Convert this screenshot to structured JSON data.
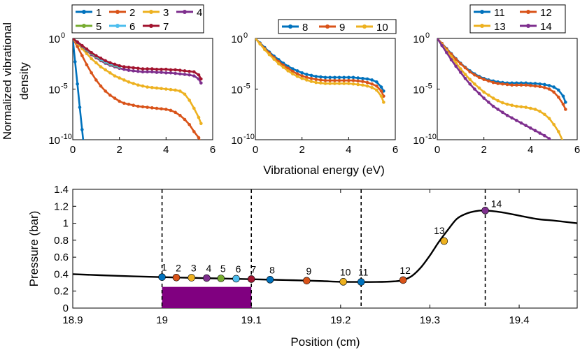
{
  "colors": {
    "1": "#0072BD",
    "2": "#D95319",
    "3": "#EDB120",
    "4": "#7E2F8E",
    "5": "#77AC30",
    "6": "#4DBEEE",
    "7": "#A2142F",
    "8": "#0072BD",
    "9": "#D95319",
    "10": "#EDB120",
    "11": "#0072BD",
    "12": "#D95319",
    "13": "#EDB120",
    "14": "#7E2F8E",
    "bar": "#800080",
    "line": "#000000"
  },
  "chart_data": [
    {
      "type": "line",
      "yscale": "log",
      "ylabel": "Normalized vibrational density",
      "xlabel": "Vibrational energy (eV)",
      "xlim": [
        0,
        6
      ],
      "ylim_exp": [
        -10,
        0
      ],
      "xticks": [
        "0",
        "2",
        "4",
        "6"
      ],
      "yticks": [
        {
          "base": "10",
          "exp": "0"
        },
        {
          "base": "10",
          "exp": "-5"
        },
        {
          "base": "10",
          "exp": "-10"
        }
      ],
      "legend": [
        "1",
        "2",
        "3",
        "4",
        "5",
        "6",
        "7"
      ],
      "series": [
        {
          "name": "1",
          "x": [
            0,
            0.1,
            0.2,
            0.3,
            0.4,
            0.5
          ],
          "y_exp": [
            0,
            -2.3,
            -4.5,
            -6.8,
            -9.0,
            -11.2
          ]
        },
        {
          "name": "2",
          "x": [
            0,
            0.2,
            0.4,
            0.6,
            0.8,
            1.0,
            1.2,
            1.4,
            1.6,
            1.8,
            2.0,
            2.2,
            2.4,
            2.6,
            2.8,
            3.0,
            3.2,
            3.4,
            3.6,
            3.8,
            4.0,
            4.2,
            4.4,
            4.6,
            4.8,
            5.0,
            5.2,
            5.4,
            5.5
          ],
          "y_exp": [
            0,
            -0.8,
            -1.7,
            -2.6,
            -3.4,
            -4.1,
            -4.7,
            -5.2,
            -5.6,
            -5.9,
            -6.2,
            -6.4,
            -6.5,
            -6.6,
            -6.7,
            -6.75,
            -6.8,
            -6.85,
            -6.9,
            -6.95,
            -7.0,
            -7.1,
            -7.3,
            -7.6,
            -8.0,
            -8.5,
            -9.2,
            -9.8,
            -10.3
          ]
        },
        {
          "name": "3",
          "x": [
            0,
            0.2,
            0.4,
            0.6,
            0.8,
            1.0,
            1.2,
            1.4,
            1.6,
            1.8,
            2.0,
            2.2,
            2.4,
            2.6,
            2.8,
            3.0,
            3.2,
            3.4,
            3.6,
            3.8,
            4.0,
            4.2,
            4.4,
            4.6,
            4.8,
            5.0,
            5.2,
            5.4,
            5.5
          ],
          "y_exp": [
            0,
            -0.5,
            -1.0,
            -1.5,
            -2.0,
            -2.4,
            -2.8,
            -3.1,
            -3.4,
            -3.7,
            -3.9,
            -4.1,
            -4.3,
            -4.45,
            -4.6,
            -4.7,
            -4.8,
            -4.85,
            -4.9,
            -4.95,
            -5.0,
            -5.05,
            -5.1,
            -5.2,
            -5.5,
            -6.1,
            -6.9,
            -7.8,
            -8.4
          ]
        },
        {
          "name": "4",
          "x": [
            0,
            0.2,
            0.4,
            0.6,
            0.8,
            1.0,
            1.2,
            1.4,
            1.6,
            1.8,
            2.0,
            2.2,
            2.4,
            2.6,
            2.8,
            3.0,
            3.2,
            3.4,
            3.6,
            3.8,
            4.0,
            4.2,
            4.4,
            4.6,
            4.8,
            5.0,
            5.2,
            5.4,
            5.5
          ],
          "y_exp": [
            0,
            -0.4,
            -0.8,
            -1.2,
            -1.6,
            -1.9,
            -2.2,
            -2.45,
            -2.65,
            -2.8,
            -2.95,
            -3.05,
            -3.15,
            -3.2,
            -3.25,
            -3.3,
            -3.3,
            -3.3,
            -3.35,
            -3.35,
            -3.4,
            -3.4,
            -3.45,
            -3.5,
            -3.55,
            -3.6,
            -3.7,
            -4.0,
            -4.4
          ]
        },
        {
          "name": "5",
          "x": [
            0,
            0.2,
            0.4,
            0.6,
            0.8,
            1.0,
            1.2,
            1.4,
            1.6,
            1.8,
            2.0
          ],
          "y_exp": [
            0,
            -0.35,
            -0.75,
            -1.15,
            -1.5,
            -1.8,
            -2.1,
            -2.35,
            -2.55,
            -2.7,
            -2.85
          ]
        },
        {
          "name": "6",
          "x": [
            0,
            0.2,
            0.4,
            0.6,
            0.8,
            1.0,
            1.2,
            1.4,
            1.6,
            1.8,
            2.0
          ],
          "y_exp": [
            0,
            -0.35,
            -0.72,
            -1.1,
            -1.45,
            -1.75,
            -2.05,
            -2.3,
            -2.5,
            -2.65,
            -2.8
          ]
        },
        {
          "name": "7",
          "x": [
            0,
            0.2,
            0.4,
            0.6,
            0.8,
            1.0,
            1.2,
            1.4,
            1.6,
            1.8,
            2.0,
            2.2,
            2.4,
            2.6,
            2.8,
            3.0,
            3.2,
            3.4,
            3.6,
            3.8,
            4.0,
            4.2,
            4.4,
            4.6,
            4.8,
            5.0,
            5.2,
            5.4,
            5.5
          ],
          "y_exp": [
            0,
            -0.35,
            -0.7,
            -1.05,
            -1.4,
            -1.7,
            -1.95,
            -2.2,
            -2.4,
            -2.55,
            -2.7,
            -2.8,
            -2.85,
            -2.9,
            -2.95,
            -3.0,
            -3.0,
            -3.0,
            -3.05,
            -3.05,
            -3.05,
            -3.1,
            -3.1,
            -3.15,
            -3.2,
            -3.25,
            -3.3,
            -3.6,
            -4.0
          ]
        }
      ]
    },
    {
      "type": "line",
      "yscale": "log",
      "xlim": [
        0,
        6
      ],
      "ylim_exp": [
        -10,
        0
      ],
      "xticks": [
        "0",
        "2",
        "4",
        "6"
      ],
      "yticks": [
        {
          "base": "10",
          "exp": "0"
        },
        {
          "base": "10",
          "exp": "-5"
        },
        {
          "base": "10",
          "exp": "-10"
        }
      ],
      "legend": [
        "8",
        "9",
        "10"
      ],
      "series": [
        {
          "name": "8",
          "x": [
            0,
            0.2,
            0.4,
            0.6,
            0.8,
            1.0,
            1.2,
            1.4,
            1.6,
            1.8,
            2.0,
            2.2,
            2.4,
            2.6,
            2.8,
            3.0,
            3.2,
            3.4,
            3.6,
            3.8,
            4.0,
            4.2,
            4.4,
            4.6,
            4.8,
            5.0,
            5.2,
            5.4,
            5.5
          ],
          "y_exp": [
            0,
            -0.45,
            -0.9,
            -1.35,
            -1.75,
            -2.1,
            -2.45,
            -2.75,
            -3.0,
            -3.2,
            -3.4,
            -3.55,
            -3.65,
            -3.75,
            -3.8,
            -3.85,
            -3.85,
            -3.85,
            -3.85,
            -3.85,
            -3.85,
            -3.85,
            -3.9,
            -3.95,
            -4.0,
            -4.1,
            -4.3,
            -4.8,
            -5.2
          ]
        },
        {
          "name": "9",
          "x": [
            0,
            0.2,
            0.4,
            0.6,
            0.8,
            1.0,
            1.2,
            1.4,
            1.6,
            1.8,
            2.0,
            2.2,
            2.4,
            2.6,
            2.8,
            3.0,
            3.2,
            3.4,
            3.6,
            3.8,
            4.0,
            4.2,
            4.4,
            4.6,
            4.8,
            5.0,
            5.2,
            5.4,
            5.5
          ],
          "y_exp": [
            0,
            -0.5,
            -1.0,
            -1.45,
            -1.9,
            -2.3,
            -2.65,
            -2.95,
            -3.25,
            -3.5,
            -3.7,
            -3.85,
            -3.95,
            -4.05,
            -4.1,
            -4.15,
            -4.15,
            -4.15,
            -4.15,
            -4.15,
            -4.15,
            -4.15,
            -4.2,
            -4.25,
            -4.35,
            -4.5,
            -4.7,
            -5.2,
            -5.7
          ]
        },
        {
          "name": "10",
          "x": [
            0,
            0.2,
            0.4,
            0.6,
            0.8,
            1.0,
            1.2,
            1.4,
            1.6,
            1.8,
            2.0,
            2.2,
            2.4,
            2.6,
            2.8,
            3.0,
            3.2,
            3.4,
            3.6,
            3.8,
            4.0,
            4.2,
            4.4,
            4.6,
            4.8,
            5.0,
            5.2,
            5.4,
            5.5
          ],
          "y_exp": [
            0,
            -0.55,
            -1.1,
            -1.6,
            -2.05,
            -2.5,
            -2.85,
            -3.2,
            -3.5,
            -3.75,
            -3.95,
            -4.1,
            -4.25,
            -4.35,
            -4.4,
            -4.45,
            -4.45,
            -4.45,
            -4.45,
            -4.45,
            -4.45,
            -4.5,
            -4.55,
            -4.6,
            -4.7,
            -4.85,
            -5.1,
            -5.7,
            -6.3
          ]
        }
      ]
    },
    {
      "type": "line",
      "yscale": "log",
      "xlim": [
        0,
        6
      ],
      "ylim_exp": [
        -10,
        0
      ],
      "xticks": [
        "0",
        "2",
        "4",
        "6"
      ],
      "yticks": [
        {
          "base": "10",
          "exp": "0"
        },
        {
          "base": "10",
          "exp": "-5"
        },
        {
          "base": "10",
          "exp": "-10"
        }
      ],
      "legend": [
        "11",
        "12",
        "13",
        "14"
      ],
      "series": [
        {
          "name": "11",
          "x": [
            0,
            0.2,
            0.4,
            0.6,
            0.8,
            1.0,
            1.2,
            1.4,
            1.6,
            1.8,
            2.0,
            2.2,
            2.4,
            2.6,
            2.8,
            3.0,
            3.2,
            3.4,
            3.6,
            3.8,
            4.0,
            4.2,
            4.4,
            4.6,
            4.8,
            5.0,
            5.2,
            5.4,
            5.5
          ],
          "y_exp": [
            0,
            -0.5,
            -1.0,
            -1.5,
            -2.0,
            -2.45,
            -2.85,
            -3.2,
            -3.5,
            -3.75,
            -3.95,
            -4.1,
            -4.2,
            -4.3,
            -4.35,
            -4.4,
            -4.4,
            -4.4,
            -4.4,
            -4.4,
            -4.45,
            -4.45,
            -4.5,
            -4.55,
            -4.65,
            -4.8,
            -5.1,
            -5.7,
            -6.3
          ]
        },
        {
          "name": "12",
          "x": [
            0,
            0.2,
            0.4,
            0.6,
            0.8,
            1.0,
            1.2,
            1.4,
            1.6,
            1.8,
            2.0,
            2.2,
            2.4,
            2.6,
            2.8,
            3.0,
            3.2,
            3.4,
            3.6,
            3.8,
            4.0,
            4.2,
            4.4,
            4.6,
            4.8,
            5.0,
            5.2,
            5.4,
            5.5
          ],
          "y_exp": [
            0,
            -0.5,
            -1.05,
            -1.55,
            -2.05,
            -2.5,
            -2.9,
            -3.3,
            -3.6,
            -3.85,
            -4.05,
            -4.2,
            -4.35,
            -4.45,
            -4.5,
            -4.55,
            -4.6,
            -4.6,
            -4.6,
            -4.6,
            -4.65,
            -4.7,
            -4.75,
            -4.85,
            -5.0,
            -5.3,
            -5.8,
            -6.5,
            -7.0
          ]
        },
        {
          "name": "13",
          "x": [
            0,
            0.2,
            0.4,
            0.6,
            0.8,
            1.0,
            1.2,
            1.4,
            1.6,
            1.8,
            2.0,
            2.2,
            2.4,
            2.6,
            2.8,
            3.0,
            3.2,
            3.4,
            3.6,
            3.8,
            4.0,
            4.2,
            4.4,
            4.6,
            4.8,
            5.0,
            5.2,
            5.4,
            5.5
          ],
          "y_exp": [
            0,
            -0.6,
            -1.2,
            -1.8,
            -2.4,
            -3.0,
            -3.55,
            -4.05,
            -4.5,
            -4.9,
            -5.3,
            -5.6,
            -5.9,
            -6.15,
            -6.35,
            -6.5,
            -6.6,
            -6.7,
            -6.75,
            -6.8,
            -6.9,
            -7.0,
            -7.2,
            -7.5,
            -7.9,
            -8.5,
            -9.2,
            -10.2,
            -11.0
          ]
        },
        {
          "name": "14",
          "x": [
            0,
            0.2,
            0.4,
            0.6,
            0.8,
            1.0,
            1.2,
            1.4,
            1.6,
            1.8,
            2.0,
            2.2,
            2.4,
            2.6,
            2.8,
            3.0,
            3.2,
            3.4,
            3.6,
            3.8,
            4.0,
            4.2,
            4.4,
            4.6,
            4.8,
            5.0
          ],
          "y_exp": [
            0,
            -0.7,
            -1.4,
            -2.1,
            -2.75,
            -3.35,
            -3.95,
            -4.5,
            -5.0,
            -5.45,
            -5.9,
            -6.3,
            -6.7,
            -7.0,
            -7.3,
            -7.6,
            -7.85,
            -8.1,
            -8.35,
            -8.6,
            -8.85,
            -9.1,
            -9.35,
            -9.6,
            -9.9,
            -10.3
          ]
        }
      ]
    },
    {
      "type": "line",
      "xlabel": "Position (cm)",
      "ylabel": "Pressure (bar)",
      "xlim": [
        18.9,
        19.465
      ],
      "ylim": [
        0,
        1.4
      ],
      "xticks": [
        {
          "v": 18.9,
          "label": "18.9"
        },
        {
          "v": 19.0,
          "label": "19"
        },
        {
          "v": 19.1,
          "label": "19.1"
        },
        {
          "v": 19.2,
          "label": "19.2"
        },
        {
          "v": 19.3,
          "label": "19.3"
        },
        {
          "v": 19.4,
          "label": "19.4"
        }
      ],
      "yticks": [
        {
          "v": 0,
          "label": "0"
        },
        {
          "v": 0.2,
          "label": "0.2"
        },
        {
          "v": 0.4,
          "label": "0.4"
        },
        {
          "v": 0.6,
          "label": "0.6"
        },
        {
          "v": 0.8,
          "label": "0.8"
        },
        {
          "v": 1.0,
          "label": "1"
        },
        {
          "v": 1.2,
          "label": "1.2"
        },
        {
          "v": 1.4,
          "label": "1.4"
        }
      ],
      "curve_x": [
        18.9,
        18.95,
        19.0,
        19.02,
        19.04,
        19.06,
        19.08,
        19.1,
        19.12,
        19.14,
        19.16,
        19.18,
        19.2,
        19.22,
        19.24,
        19.26,
        19.27,
        19.28,
        19.29,
        19.3,
        19.31,
        19.32,
        19.33,
        19.34,
        19.35,
        19.36,
        19.38,
        19.4,
        19.42,
        19.44,
        19.465
      ],
      "curve_y": [
        0.4,
        0.38,
        0.365,
        0.36,
        0.355,
        0.35,
        0.345,
        0.34,
        0.335,
        0.33,
        0.325,
        0.318,
        0.31,
        0.308,
        0.308,
        0.315,
        0.33,
        0.38,
        0.48,
        0.62,
        0.78,
        0.92,
        1.05,
        1.11,
        1.14,
        1.15,
        1.13,
        1.09,
        1.05,
        1.03,
        1.0
      ],
      "points": [
        {
          "label": "1",
          "x": 19.0,
          "y": 0.365
        },
        {
          "label": "2",
          "x": 19.016,
          "y": 0.36
        },
        {
          "label": "3",
          "x": 19.033,
          "y": 0.358
        },
        {
          "label": "4",
          "x": 19.05,
          "y": 0.354
        },
        {
          "label": "5",
          "x": 19.066,
          "y": 0.35
        },
        {
          "label": "6",
          "x": 19.083,
          "y": 0.346
        },
        {
          "label": "7",
          "x": 19.1,
          "y": 0.342
        },
        {
          "label": "8",
          "x": 19.121,
          "y": 0.335
        },
        {
          "label": "9",
          "x": 19.162,
          "y": 0.323
        },
        {
          "label": "10",
          "x": 19.203,
          "y": 0.31
        },
        {
          "label": "11",
          "x": 19.223,
          "y": 0.308
        },
        {
          "label": "12",
          "x": 19.27,
          "y": 0.33
        },
        {
          "label": "13",
          "x": 19.316,
          "y": 0.79
        },
        {
          "label": "14",
          "x": 19.362,
          "y": 1.15
        }
      ],
      "dashed_lines_x": [
        19.0,
        19.1,
        19.223,
        19.362
      ],
      "bar": {
        "x0": 19.0,
        "x1": 19.1,
        "y": 0.25
      }
    }
  ]
}
